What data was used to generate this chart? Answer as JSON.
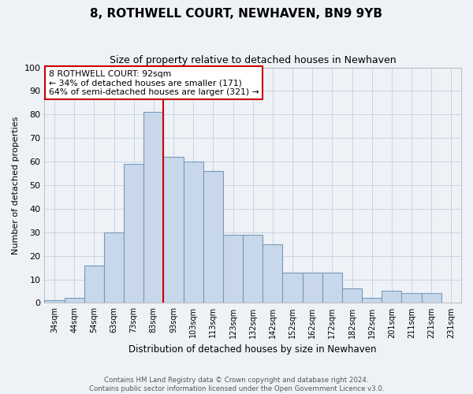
{
  "title": "8, ROTHWELL COURT, NEWHAVEN, BN9 9YB",
  "subtitle": "Size of property relative to detached houses in Newhaven",
  "xlabel": "Distribution of detached houses by size in Newhaven",
  "ylabel": "Number of detached properties",
  "bar_labels": [
    "34sqm",
    "44sqm",
    "54sqm",
    "63sqm",
    "73sqm",
    "83sqm",
    "93sqm",
    "103sqm",
    "113sqm",
    "123sqm",
    "132sqm",
    "142sqm",
    "152sqm",
    "162sqm",
    "172sqm",
    "182sqm",
    "192sqm",
    "201sqm",
    "211sqm",
    "221sqm",
    "231sqm"
  ],
  "bar_values": [
    1,
    2,
    16,
    30,
    59,
    81,
    62,
    60,
    56,
    29,
    29,
    25,
    13,
    13,
    13,
    6,
    2,
    5,
    4,
    4,
    0
  ],
  "bar_color": "#c8d8ea",
  "bar_edge_color": "#7799bb",
  "vline_color": "#cc0000",
  "vline_position": 5.5,
  "annotation_title": "8 ROTHWELL COURT: 92sqm",
  "annotation_line1": "← 34% of detached houses are smaller (171)",
  "annotation_line2": "64% of semi-detached houses are larger (321) →",
  "annotation_box_facecolor": "#ffffff",
  "annotation_box_edgecolor": "#cc0000",
  "grid_color": "#c8d4e0",
  "bg_color": "#eef2f7",
  "ylim": [
    0,
    100
  ],
  "yticks": [
    0,
    10,
    20,
    30,
    40,
    50,
    60,
    70,
    80,
    90,
    100
  ],
  "footer1": "Contains HM Land Registry data © Crown copyright and database right 2024.",
  "footer2": "Contains public sector information licensed under the Open Government Licence v3.0."
}
